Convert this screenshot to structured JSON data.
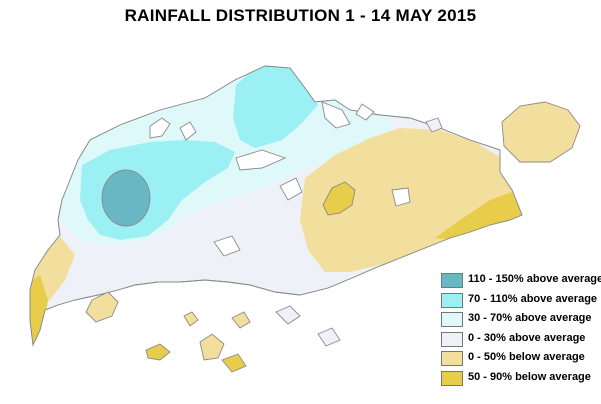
{
  "title": "RAINFALL DISTRIBUTION  1 - 14 MAY 2015",
  "colors": {
    "c110_150": "#69b7c5",
    "c70_110": "#9af0f3",
    "c30_70": "#dff8fa",
    "c0_30": "#eef2f8",
    "b0_50": "#f3df9d",
    "b50_90": "#e7cd49",
    "coast": "#8a8a8a"
  },
  "legend": [
    {
      "label": "110 - 150% above average",
      "color": "#69b7c5"
    },
    {
      "label": "70 - 110% above average",
      "color": "#9af0f3"
    },
    {
      "label": "30 - 70% above average",
      "color": "#dff8fa"
    },
    {
      "label": "0 - 30% above average",
      "color": "#eef2f8"
    },
    {
      "label": "0 - 50% below average",
      "color": "#f3df9d"
    },
    {
      "label": "50 - 90% below average",
      "color": "#e7cd49"
    }
  ]
}
